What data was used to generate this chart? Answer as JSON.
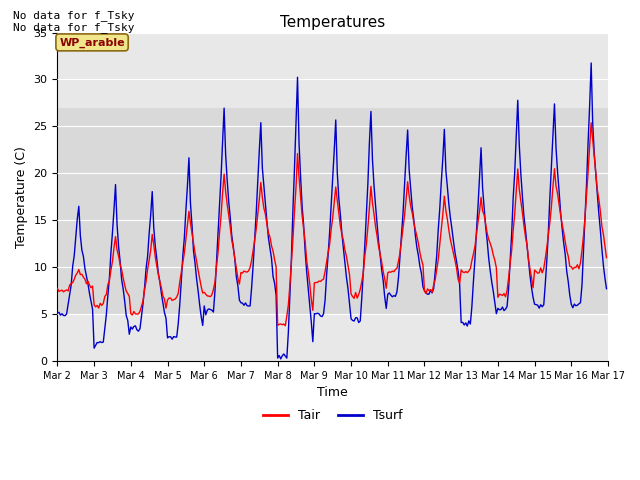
{
  "title": "Temperatures",
  "xlabel": "Time",
  "ylabel": "Temperature (C)",
  "ylim": [
    0,
    35
  ],
  "xlim_days": [
    2,
    17
  ],
  "tair_color": "#ff0000",
  "tsurf_color": "#0000cc",
  "annotation_text": "No data for f_Tsky\nNo data for f_Tsky",
  "wp_label": "WP_arable",
  "legend_tair": "Tair",
  "legend_tsurf": "Tsurf",
  "plot_bg": "#e8e8e8",
  "grid_color": "#ffffff",
  "shade_color": "#d0d0d0",
  "shade_low": 5.0,
  "shade_high": 27.0
}
